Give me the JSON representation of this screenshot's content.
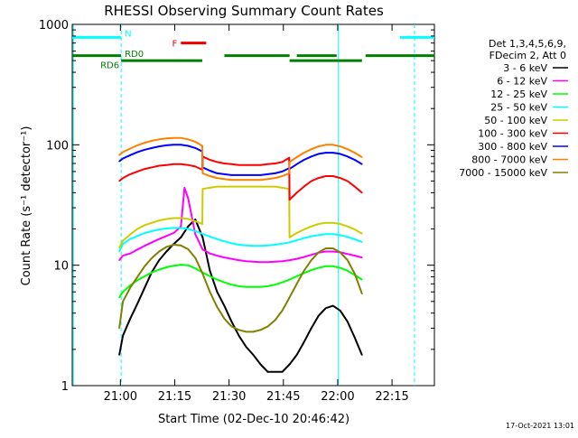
{
  "chart_data": {
    "type": "line",
    "title": "RHESSI Observing Summary Count Rates",
    "xlabel": "Start Time (02-Dec-10 20:46:42)",
    "ylabel": "Count Rate (s⁻¹ detector⁻¹)",
    "x_unit": "minutes after 20:46:42",
    "xlim": [
      0,
      100
    ],
    "ylim": [
      1,
      1000
    ],
    "y_scale": "log",
    "x_ticks": [
      {
        "label": "21:00",
        "x": 13.3
      },
      {
        "label": "21:15",
        "x": 28.3
      },
      {
        "label": "21:30",
        "x": 43.3
      },
      {
        "label": "21:45",
        "x": 58.3
      },
      {
        "label": "22:00",
        "x": 73.3
      },
      {
        "label": "22:15",
        "x": 88.3
      }
    ],
    "y_ticks": [
      {
        "label": "1",
        "y": 1
      },
      {
        "label": "10",
        "y": 10
      },
      {
        "label": "100",
        "y": 100
      },
      {
        "label": "1000",
        "y": 1000
      }
    ],
    "legend_header": [
      "Det 1,3,4,5,6,9,",
      "FDecim 2, Att 0"
    ],
    "legend_position": "right",
    "footer_date": "17-Oct-2021 13:01",
    "series": [
      {
        "name": "3 - 6 keV",
        "color": "#000000",
        "x": [
          13,
          14,
          16,
          18,
          20,
          22,
          24,
          26,
          28,
          30,
          32,
          34,
          36,
          38,
          40,
          42,
          44,
          46,
          48,
          50,
          52,
          54,
          56,
          58,
          60,
          62,
          64,
          66,
          68,
          70,
          72,
          74,
          76,
          78,
          80
        ],
        "y": [
          1.8,
          2.6,
          3.6,
          4.8,
          6.5,
          8.8,
          11,
          13,
          15,
          17,
          21,
          24,
          17,
          9,
          6,
          4.6,
          3.4,
          2.6,
          2.1,
          1.8,
          1.5,
          1.3,
          1.3,
          1.3,
          1.5,
          1.8,
          2.3,
          3,
          3.8,
          4.4,
          4.6,
          4.2,
          3.4,
          2.5,
          1.8
        ]
      },
      {
        "name": "6 - 12 keV",
        "color": "#ff00ff",
        "x": [
          13,
          14,
          16,
          18,
          20,
          22,
          24,
          26,
          28,
          30,
          31,
          32,
          34,
          36,
          38,
          40,
          42,
          44,
          46,
          48,
          50,
          52,
          54,
          56,
          58,
          60,
          62,
          64,
          66,
          68,
          70,
          72,
          74,
          76,
          78,
          80
        ],
        "y": [
          11,
          12,
          12.5,
          13.5,
          14.5,
          15.5,
          16.5,
          17.5,
          18.5,
          21,
          44,
          36,
          18,
          13.5,
          12.5,
          12,
          11.6,
          11.3,
          11,
          10.8,
          10.7,
          10.6,
          10.6,
          10.7,
          10.8,
          11,
          11.3,
          11.7,
          12.2,
          12.7,
          13,
          13,
          12.8,
          12.4,
          12,
          11.6
        ]
      },
      {
        "name": "12 - 25 keV",
        "color": "#00ff00",
        "x": [
          13,
          14,
          16,
          18,
          20,
          22,
          24,
          26,
          28,
          30,
          32,
          34,
          36,
          38,
          40,
          42,
          44,
          46,
          48,
          50,
          52,
          54,
          56,
          58,
          60,
          62,
          64,
          66,
          68,
          70,
          72,
          74,
          76,
          78,
          80
        ],
        "y": [
          5.4,
          6,
          6.8,
          7.5,
          8.1,
          8.7,
          9.2,
          9.6,
          9.9,
          10.1,
          10,
          9.4,
          8.7,
          8.1,
          7.6,
          7.2,
          6.9,
          6.7,
          6.6,
          6.6,
          6.6,
          6.7,
          6.9,
          7.2,
          7.6,
          8.1,
          8.6,
          9.1,
          9.5,
          9.8,
          9.8,
          9.5,
          9,
          8.3,
          7.6
        ]
      },
      {
        "name": "25 - 50 keV",
        "color": "#00ffff",
        "x": [
          13,
          14,
          16,
          18,
          20,
          22,
          24,
          26,
          28,
          30,
          32,
          34,
          36,
          38,
          40,
          42,
          44,
          46,
          48,
          50,
          52,
          54,
          56,
          58,
          60,
          62,
          64,
          66,
          68,
          70,
          72,
          74,
          76,
          78,
          80
        ],
        "y": [
          13,
          15,
          16.5,
          17.5,
          18.5,
          19.2,
          19.8,
          20.2,
          20.4,
          20.4,
          20,
          19.2,
          18.2,
          17.3,
          16.5,
          15.8,
          15.2,
          14.8,
          14.6,
          14.5,
          14.5,
          14.6,
          14.8,
          15.1,
          15.5,
          16.1,
          16.8,
          17.4,
          17.8,
          18.1,
          18.1,
          17.8,
          17.2,
          16.4,
          15.6
        ]
      },
      {
        "name": "50 - 100 keV",
        "color": "#cccc00",
        "x": [
          13,
          14,
          16,
          18,
          20,
          22,
          24,
          26,
          28,
          30,
          32,
          34,
          35.9,
          36,
          38,
          40,
          42,
          44,
          46,
          48,
          50,
          52,
          54,
          56,
          58,
          59.9,
          60,
          62,
          64,
          66,
          68,
          70,
          72,
          74,
          76,
          78,
          80
        ],
        "y": [
          14,
          16,
          18,
          20,
          21.5,
          22.5,
          23.5,
          24.2,
          24.6,
          24.6,
          24.2,
          23.2,
          22,
          43,
          44,
          45,
          45,
          45,
          45,
          45,
          45,
          45,
          45,
          45,
          44,
          43,
          17,
          18.5,
          19.8,
          21,
          22,
          22.5,
          22.5,
          22,
          21,
          19.8,
          18.3
        ]
      },
      {
        "name": "100 - 300 keV",
        "color": "#ff0000",
        "x": [
          13,
          14,
          16,
          18,
          20,
          22,
          24,
          26,
          28,
          30,
          32,
          34,
          35.9,
          36,
          38,
          40,
          42,
          44,
          46,
          48,
          50,
          52,
          54,
          56,
          58,
          59.9,
          60,
          62,
          64,
          66,
          68,
          70,
          72,
          74,
          76,
          78,
          80
        ],
        "y": [
          50,
          53,
          57,
          60,
          63,
          65,
          67,
          68,
          69,
          69,
          68,
          66,
          62,
          80,
          75,
          72,
          70,
          69,
          68,
          68,
          68,
          68,
          69,
          70,
          72,
          78,
          35,
          40,
          45,
          50,
          53,
          55,
          55,
          53,
          50,
          45,
          40
        ]
      },
      {
        "name": "300 - 800 keV",
        "color": "#0000ff",
        "x": [
          13,
          14,
          16,
          18,
          20,
          22,
          24,
          26,
          28,
          30,
          32,
          34,
          35.9,
          36,
          38,
          40,
          42,
          44,
          46,
          48,
          50,
          52,
          54,
          56,
          58,
          59.9,
          60,
          62,
          64,
          66,
          68,
          70,
          72,
          74,
          76,
          78,
          80
        ],
        "y": [
          73,
          77,
          82,
          87,
          91,
          94,
          97,
          99,
          100,
          100,
          98,
          94,
          88,
          65,
          61,
          58,
          57,
          56,
          56,
          56,
          56,
          56,
          57,
          58,
          60,
          64,
          63,
          69,
          75,
          80,
          84,
          86,
          86,
          84,
          80,
          75,
          69
        ]
      },
      {
        "name": "800 - 7000 keV",
        "color": "#ff8000",
        "x": [
          13,
          14,
          16,
          18,
          20,
          22,
          24,
          26,
          28,
          30,
          32,
          34,
          35.9,
          36,
          38,
          40,
          42,
          44,
          46,
          48,
          50,
          52,
          54,
          56,
          58,
          59.9,
          60,
          62,
          64,
          66,
          68,
          70,
          72,
          74,
          76,
          78,
          80
        ],
        "y": [
          82,
          87,
          93,
          99,
          104,
          108,
          111,
          113,
          114,
          114,
          111,
          106,
          98,
          58,
          55,
          53,
          52,
          51,
          51,
          51,
          51,
          51,
          52,
          53,
          55,
          58,
          72,
          79,
          86,
          92,
          97,
          100,
          100,
          97,
          92,
          86,
          79
        ]
      },
      {
        "name": "7000 - 15000 keV",
        "color": "#808000",
        "x": [
          13,
          14,
          16,
          18,
          20,
          22,
          24,
          26,
          28,
          30,
          32,
          34,
          36,
          38,
          40,
          42,
          44,
          46,
          48,
          50,
          52,
          54,
          56,
          58,
          60,
          62,
          64,
          66,
          68,
          70,
          72,
          74,
          76,
          78,
          80
        ],
        "y": [
          3,
          5,
          6.5,
          8,
          9.8,
          11.5,
          13,
          14.2,
          14.8,
          14.6,
          13.6,
          11.5,
          8.5,
          6,
          4.5,
          3.6,
          3.1,
          2.9,
          2.8,
          2.8,
          2.9,
          3.1,
          3.5,
          4.2,
          5.4,
          7,
          9,
          11,
          12.8,
          13.8,
          13.8,
          12.8,
          11,
          8.5,
          5.8
        ]
      }
    ],
    "attenuator_markers": [
      {
        "label": "N",
        "color": "#00ffff",
        "y": 780,
        "segments": [
          [
            0,
            13.5
          ],
          [
            90.5,
            100
          ]
        ]
      },
      {
        "label": "F",
        "color": "#ee0000",
        "y": 700,
        "segments": [
          [
            30,
            37
          ]
        ]
      }
    ],
    "rate_decimation_markers": [
      {
        "label": "RD6",
        "color": "#008000",
        "y": 550,
        "segments": [
          [
            0,
            13.5
          ]
        ]
      },
      {
        "label": "RD0",
        "color": "#008000",
        "y": 500,
        "segments": [
          [
            13.5,
            35.9
          ]
        ]
      }
    ],
    "green_bars": [
      {
        "color": "#008000",
        "y": 550,
        "segments": [
          [
            42,
            60
          ],
          [
            62,
            73
          ],
          [
            81,
            100
          ]
        ]
      },
      {
        "color": "#008000",
        "y": 500,
        "segments": [
          [
            60,
            80
          ]
        ]
      }
    ],
    "vertical_markers": [
      {
        "x": 0.3,
        "style": "solid",
        "color": "#00ffff"
      },
      {
        "x": 13.5,
        "style": "dashed",
        "color": "#00ffff"
      },
      {
        "x": 73.5,
        "style": "solid",
        "color": "#00ffff"
      },
      {
        "x": 94.5,
        "style": "dashed",
        "color": "#00ffff"
      }
    ],
    "grid": false
  }
}
